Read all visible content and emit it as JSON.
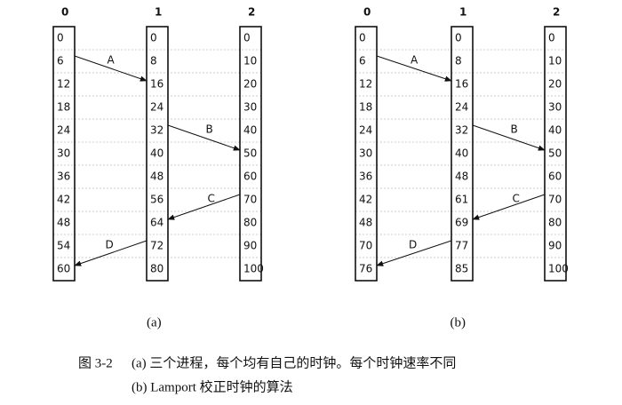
{
  "panels": [
    {
      "label": "(a)",
      "processes": [
        {
          "id": "0",
          "clock": [
            0,
            6,
            12,
            18,
            24,
            30,
            36,
            42,
            48,
            54,
            60
          ]
        },
        {
          "id": "1",
          "clock": [
            0,
            8,
            16,
            24,
            32,
            40,
            48,
            56,
            64,
            72,
            80
          ]
        },
        {
          "id": "2",
          "clock": [
            0,
            10,
            20,
            30,
            40,
            50,
            60,
            70,
            80,
            90,
            100
          ]
        }
      ],
      "messages": [
        "A",
        "B",
        "C",
        "D"
      ]
    },
    {
      "label": "(b)",
      "processes": [
        {
          "id": "0",
          "clock": [
            0,
            6,
            12,
            18,
            24,
            30,
            36,
            42,
            48,
            70,
            76
          ]
        },
        {
          "id": "1",
          "clock": [
            0,
            8,
            16,
            24,
            32,
            40,
            48,
            61,
            69,
            77,
            85
          ]
        },
        {
          "id": "2",
          "clock": [
            0,
            10,
            20,
            30,
            40,
            50,
            60,
            70,
            80,
            90,
            100
          ]
        }
      ],
      "messages": [
        "A",
        "B",
        "C",
        "D"
      ]
    }
  ],
  "caption": {
    "figure": "图 3-2",
    "lines": [
      "(a) 三个进程，每个均有自己的时钟。每个时钟速率不同",
      "(b) Lamport 校正时钟的算法"
    ]
  }
}
